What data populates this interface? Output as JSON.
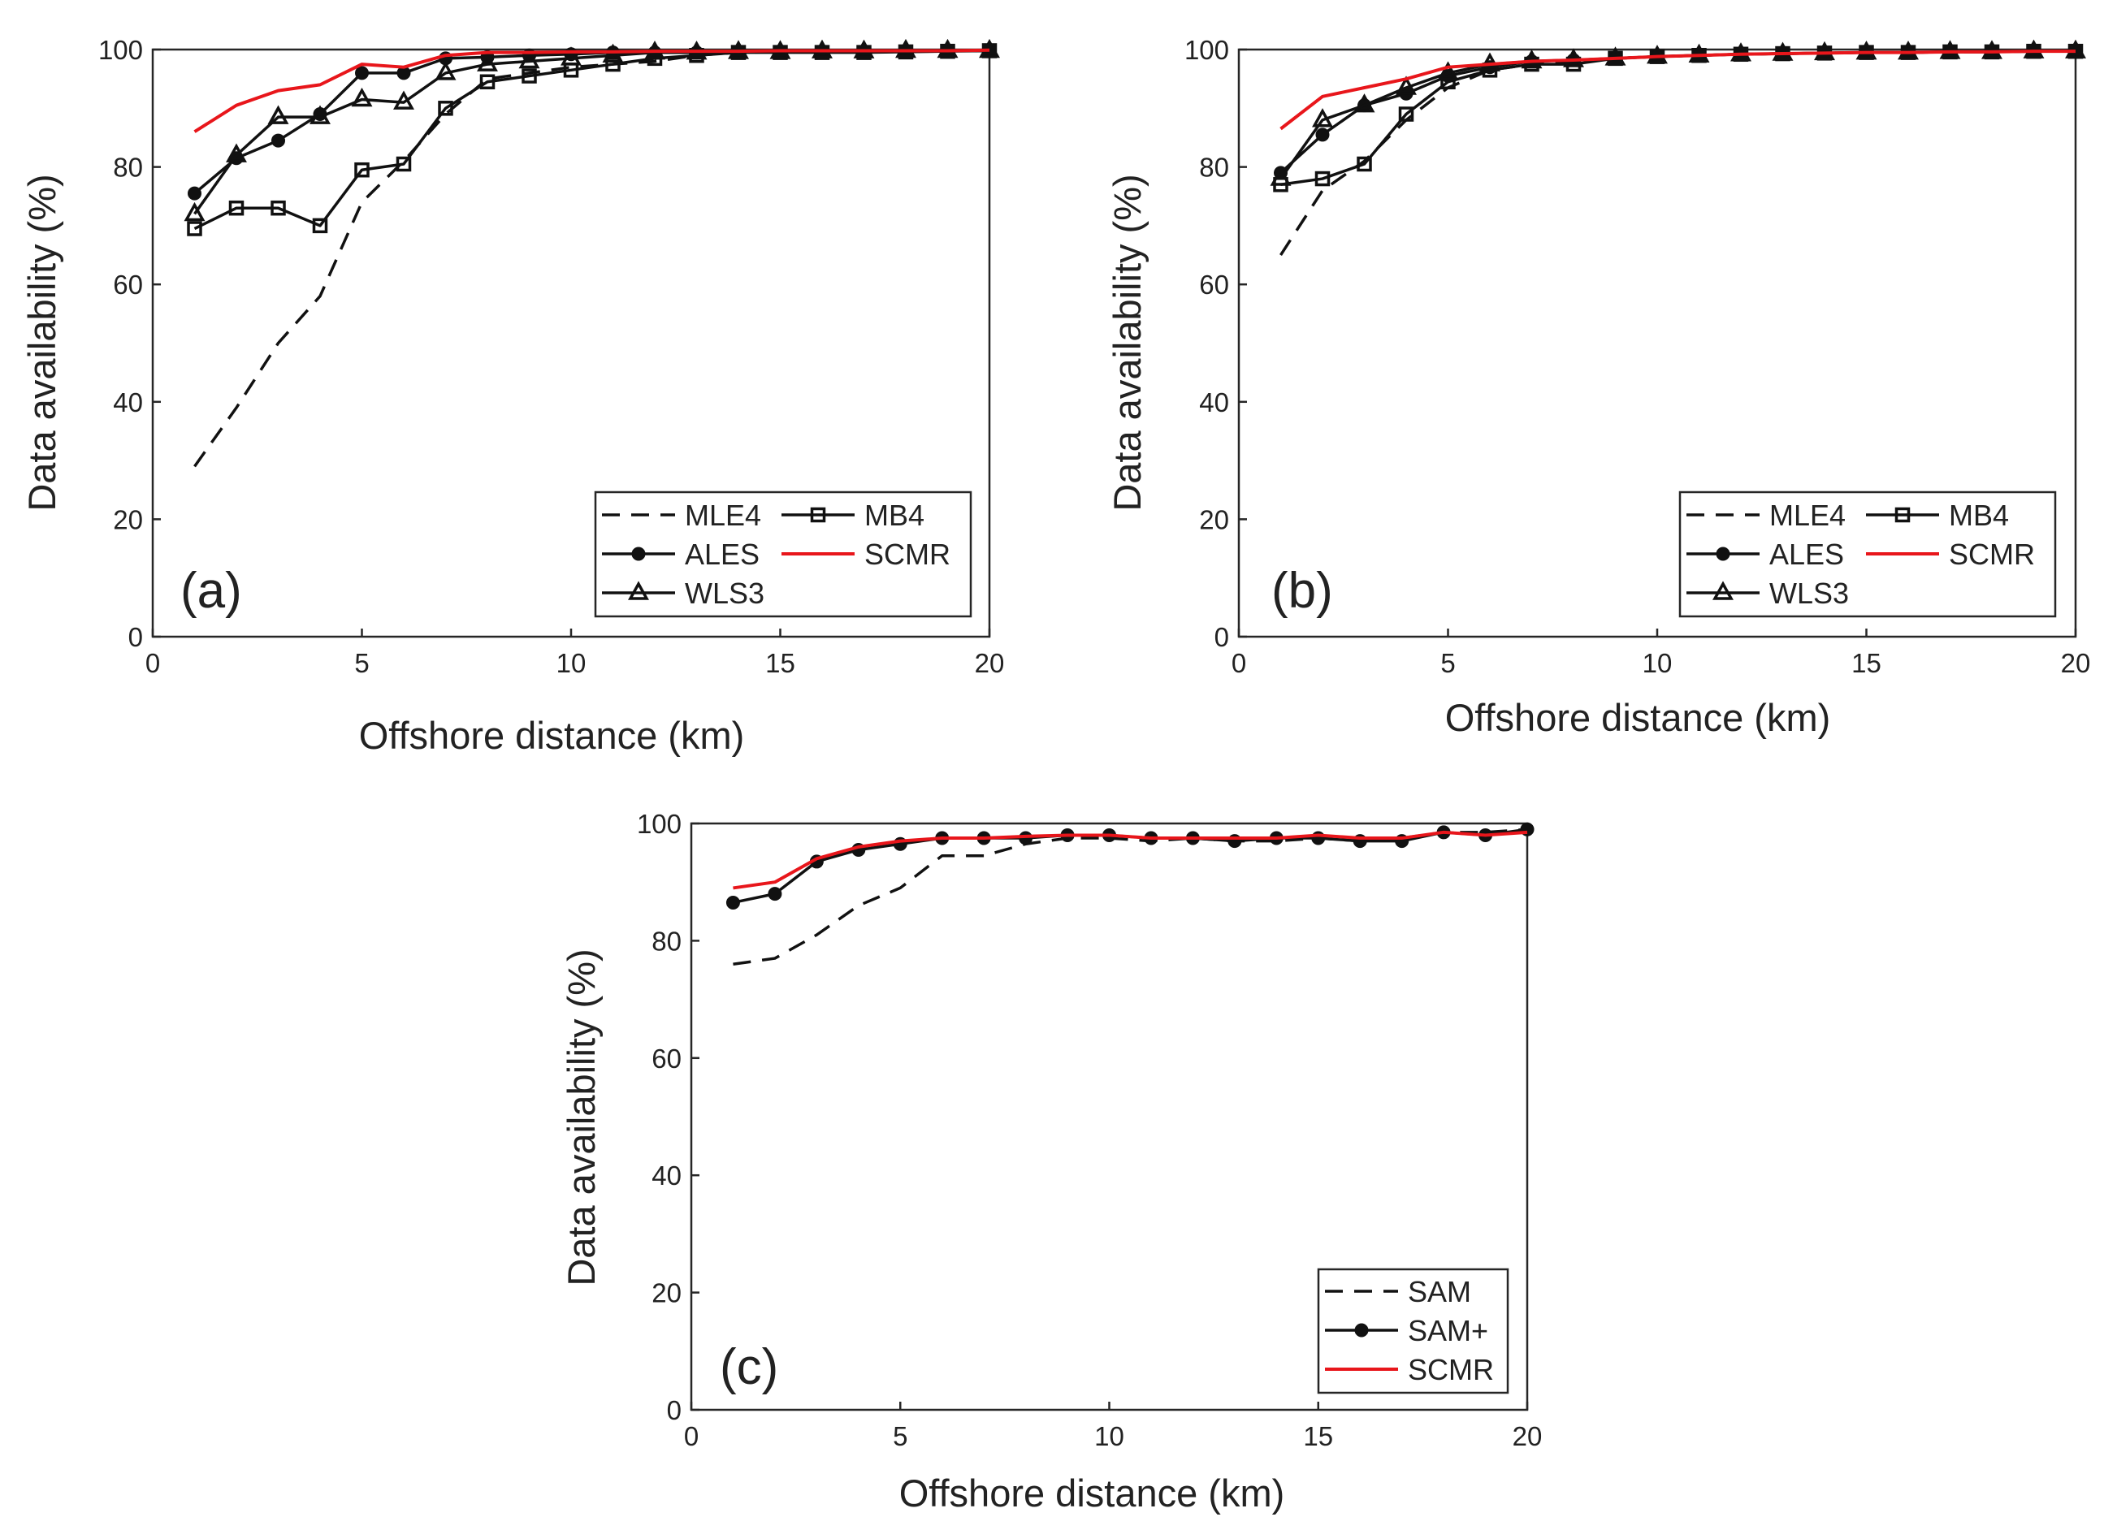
{
  "chart_data": [
    {
      "type": "line",
      "panel_label": "(a)",
      "xlabel": "Offshore distance (km)",
      "ylabel": "Data availability (%)",
      "xlim": [
        0,
        20
      ],
      "ylim": [
        0,
        100
      ],
      "xticks": [
        0,
        5,
        10,
        15,
        20
      ],
      "yticks": [
        0,
        20,
        40,
        60,
        80,
        100
      ],
      "legend_position": "bottom-right",
      "legend_columns": 2,
      "x": [
        1,
        2,
        3,
        4,
        5,
        6,
        7,
        8,
        9,
        10,
        11,
        12,
        13,
        14,
        15,
        16,
        17,
        18,
        19,
        20
      ],
      "series": [
        {
          "name": "MLE4",
          "style": "dashed",
          "marker": "none",
          "color": "#111111",
          "values": [
            29,
            39,
            50,
            58,
            74,
            81,
            89,
            95,
            96,
            97,
            97.5,
            98,
            99,
            99.5,
            99.6,
            99.6,
            99.7,
            99.8,
            99.8,
            99.8
          ]
        },
        {
          "name": "MB4",
          "style": "solid",
          "marker": "square",
          "color": "#111111",
          "values": [
            69.5,
            73,
            73,
            70,
            79.5,
            80.5,
            90,
            94.5,
            95.5,
            96.5,
            97.5,
            98.5,
            99,
            99.5,
            99.5,
            99.5,
            99.5,
            99.6,
            99.7,
            99.8
          ]
        },
        {
          "name": "ALES",
          "style": "solid",
          "marker": "circle",
          "color": "#111111",
          "values": [
            75.5,
            81.5,
            84.5,
            89,
            96,
            96,
            98.5,
            98.7,
            99,
            99.2,
            99.5,
            99.5,
            99.5,
            99.6,
            99.6,
            99.7,
            99.7,
            99.8,
            99.8,
            99.8
          ]
        },
        {
          "name": "SCMR",
          "style": "solid",
          "marker": "none",
          "color": "#e8161b",
          "values": [
            86,
            90.5,
            93,
            94,
            97.5,
            97,
            99,
            99.5,
            99.5,
            99.6,
            99.6,
            99.7,
            99.7,
            99.7,
            99.8,
            99.8,
            99.8,
            99.8,
            99.8,
            99.9
          ]
        },
        {
          "name": "WLS3",
          "style": "solid",
          "marker": "triangle",
          "color": "#111111",
          "values": [
            72,
            82,
            88.5,
            88.5,
            91.5,
            91,
            96,
            97.5,
            98,
            98.5,
            99,
            99.5,
            99.5,
            99.6,
            99.6,
            99.7,
            99.7,
            99.8,
            99.8,
            99.8
          ]
        }
      ]
    },
    {
      "type": "line",
      "panel_label": "(b)",
      "xlabel": "Offshore distance (km)",
      "ylabel": "Data availability (%)",
      "xlim": [
        0,
        20
      ],
      "ylim": [
        0,
        100
      ],
      "xticks": [
        0,
        5,
        10,
        15,
        20
      ],
      "yticks": [
        0,
        20,
        40,
        60,
        80,
        100
      ],
      "legend_position": "bottom-right",
      "legend_columns": 2,
      "x": [
        1,
        2,
        3,
        4,
        5,
        6,
        7,
        8,
        9,
        10,
        11,
        12,
        13,
        14,
        15,
        16,
        17,
        18,
        19,
        20
      ],
      "series": [
        {
          "name": "MLE4",
          "style": "dashed",
          "marker": "none",
          "color": "#111111",
          "values": [
            65,
            76,
            81,
            88,
            93.5,
            96.5,
            97.5,
            98,
            98.5,
            98.8,
            99,
            99.2,
            99.3,
            99.4,
            99.5,
            99.5,
            99.6,
            99.6,
            99.7,
            99.7
          ]
        },
        {
          "name": "MB4",
          "style": "solid",
          "marker": "square",
          "color": "#111111",
          "values": [
            77,
            78,
            80.5,
            89,
            94.5,
            96.5,
            97.5,
            97.5,
            98.5,
            98.8,
            99,
            99.2,
            99.3,
            99.4,
            99.5,
            99.5,
            99.6,
            99.6,
            99.7,
            99.7
          ]
        },
        {
          "name": "ALES",
          "style": "solid",
          "marker": "circle",
          "color": "#111111",
          "values": [
            79,
            85.5,
            90.5,
            92.5,
            95.5,
            97,
            98,
            98.2,
            98.5,
            98.8,
            99,
            99.2,
            99.3,
            99.4,
            99.5,
            99.5,
            99.6,
            99.6,
            99.7,
            99.7
          ]
        },
        {
          "name": "SCMR",
          "style": "solid",
          "marker": "none",
          "color": "#e8161b",
          "values": [
            86.5,
            92,
            93.5,
            95,
            97,
            97.5,
            98,
            98.2,
            98.5,
            98.8,
            99,
            99.2,
            99.3,
            99.4,
            99.5,
            99.5,
            99.6,
            99.6,
            99.7,
            99.7
          ]
        },
        {
          "name": "WLS3",
          "style": "solid",
          "marker": "triangle",
          "color": "#111111",
          "values": [
            78,
            88,
            90.5,
            93.5,
            96,
            97.5,
            98,
            98.2,
            98.5,
            98.8,
            99,
            99.2,
            99.3,
            99.4,
            99.5,
            99.5,
            99.6,
            99.6,
            99.7,
            99.7
          ]
        }
      ]
    },
    {
      "type": "line",
      "panel_label": "(c)",
      "xlabel": "Offshore distance (km)",
      "ylabel": "Data availability (%)",
      "xlim": [
        0,
        20
      ],
      "ylim": [
        0,
        100
      ],
      "xticks": [
        0,
        5,
        10,
        15,
        20
      ],
      "yticks": [
        0,
        20,
        40,
        60,
        80,
        100
      ],
      "legend_position": "bottom-right",
      "legend_columns": 1,
      "x": [
        1,
        2,
        3,
        4,
        5,
        6,
        7,
        8,
        9,
        10,
        11,
        12,
        13,
        14,
        15,
        16,
        17,
        18,
        19,
        20
      ],
      "series": [
        {
          "name": "SAM",
          "style": "dashed",
          "marker": "none",
          "color": "#111111",
          "values": [
            76,
            77,
            81,
            86,
            89,
            94.5,
            94.5,
            96.5,
            97.5,
            97.5,
            97,
            97.5,
            97,
            97,
            97.5,
            97,
            97.5,
            98.5,
            98.5,
            99
          ]
        },
        {
          "name": "SAM+",
          "style": "solid",
          "marker": "circle",
          "color": "#111111",
          "values": [
            86.5,
            88,
            93.5,
            95.5,
            96.5,
            97.5,
            97.5,
            97.5,
            98,
            98,
            97.5,
            97.5,
            97,
            97.5,
            97.5,
            97,
            97,
            98.5,
            98,
            99
          ]
        },
        {
          "name": "SCMR",
          "style": "solid",
          "marker": "none",
          "color": "#e8161b",
          "values": [
            89,
            90,
            94,
            96,
            97,
            97.5,
            97.5,
            97.8,
            98,
            98,
            97.5,
            97.5,
            97.5,
            97.5,
            98,
            97.5,
            97.5,
            98.5,
            98,
            98.5
          ]
        }
      ]
    }
  ]
}
